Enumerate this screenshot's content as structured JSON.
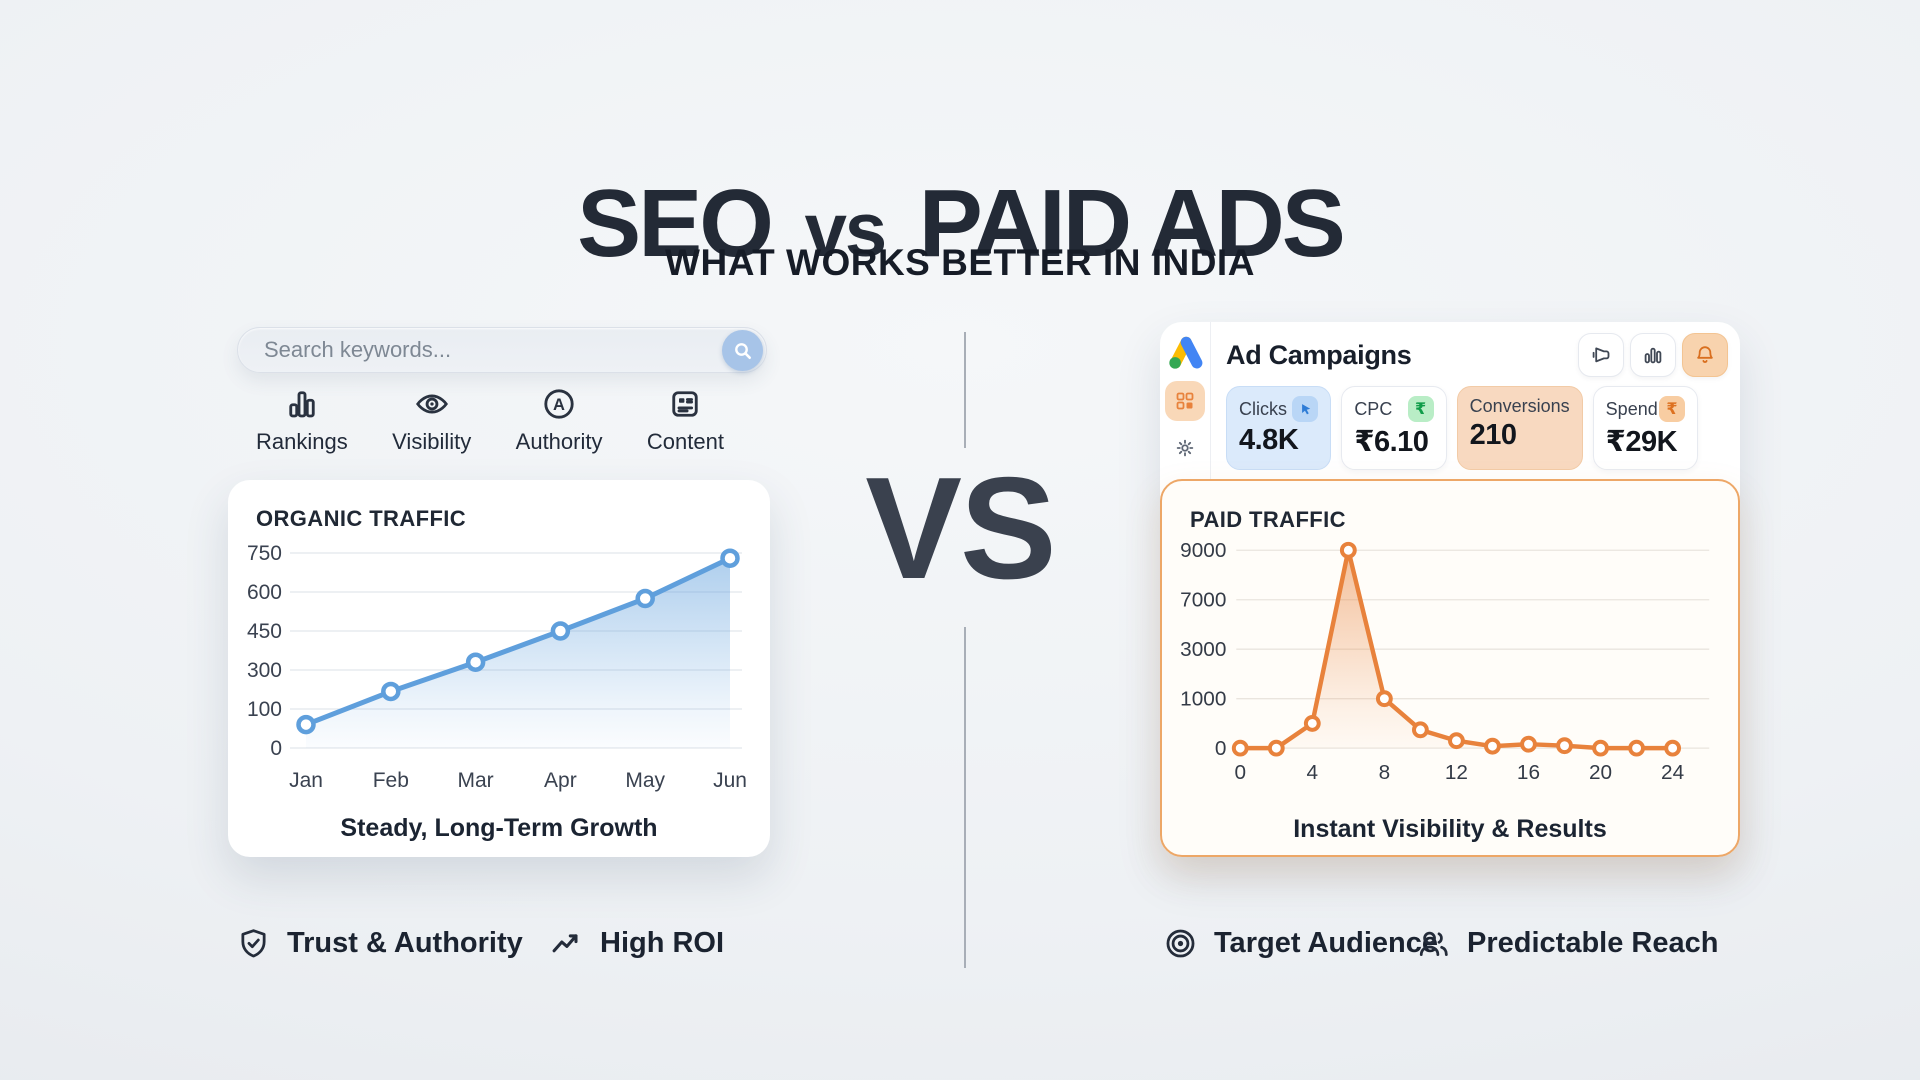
{
  "header": {
    "title_left": "SEO",
    "title_vs": "vs",
    "title_right": "PAID ADS",
    "subtitle": "WHAT WORKS BETTER IN INDIA"
  },
  "vs_label": "VS",
  "seo": {
    "search": {
      "placeholder": "Search keywords..."
    },
    "features": [
      {
        "icon": "bar-chart-icon",
        "label": "Rankings"
      },
      {
        "icon": "eye-icon",
        "label": "Visibility"
      },
      {
        "icon": "authority-icon",
        "label": "Authority"
      },
      {
        "icon": "document-icon",
        "label": "Content"
      }
    ],
    "badges": [
      {
        "icon": "shield-check-icon",
        "label": "Trust & Authority"
      },
      {
        "icon": "trending-up-icon",
        "label": "High ROI"
      }
    ]
  },
  "paid": {
    "app_title": "Ad Campaigns",
    "toolbar_icons": [
      "megaphone-icon",
      "bar-chart-icon",
      "bell-icon"
    ],
    "rail_icons": [
      "google-ads-logo",
      "dashboard-grid-icon",
      "gear-icon"
    ],
    "stats": [
      {
        "label": "Clicks",
        "value": "4.8K",
        "badge": "cursor-icon",
        "style": "blue"
      },
      {
        "label": "CPC",
        "value": "₹6.10",
        "badge_symbol": "₹",
        "badge_color": "green",
        "style": "white"
      },
      {
        "label": "Conversions",
        "value": "210",
        "style": "orange"
      },
      {
        "label": "Spend",
        "value": "₹29K",
        "badge_symbol": "₹",
        "badge_color": "orange",
        "style": "white"
      }
    ],
    "badges": [
      {
        "icon": "target-icon",
        "label": "Target Audience"
      },
      {
        "icon": "users-icon",
        "label": "Predictable Reach"
      }
    ]
  },
  "colors": {
    "seo_accent": "#5f9fdc",
    "paid_accent": "#e8823c",
    "title_text": "#232a36",
    "card_bg": "#ffffff",
    "paid_card_bg": "#fffdf9",
    "paid_card_border": "#eda767"
  },
  "chart_data": [
    {
      "id": "organic",
      "type": "area",
      "title": "ORGANIC TRAFFIC",
      "caption": "Steady, Long-Term Growth",
      "x": [
        "Jan",
        "Feb",
        "Mar",
        "Apr",
        "May",
        "Jun"
      ],
      "values": [
        60,
        190,
        330,
        450,
        575,
        730
      ],
      "y_ticks": [
        0,
        100,
        300,
        450,
        600,
        750
      ],
      "xlabel": "",
      "ylabel": "",
      "grid": true,
      "legend": "none",
      "line_color": "#5f9fdc"
    },
    {
      "id": "paid",
      "type": "area",
      "title": "PAID TRAFFIC",
      "caption": "Instant Visibility & Results",
      "x": [
        0,
        2,
        4,
        6,
        8,
        10,
        12,
        14,
        16,
        18,
        20,
        22,
        24
      ],
      "x_tick_labels": [
        0,
        4,
        8,
        12,
        16,
        20,
        24
      ],
      "values": [
        0,
        0,
        500,
        9000,
        1000,
        370,
        150,
        40,
        80,
        50,
        0,
        0,
        0
      ],
      "y_ticks": [
        0,
        1000,
        3000,
        7000,
        9000
      ],
      "xlabel": "",
      "ylabel": "",
      "grid": true,
      "legend": "none",
      "line_color": "#e8823c"
    }
  ]
}
